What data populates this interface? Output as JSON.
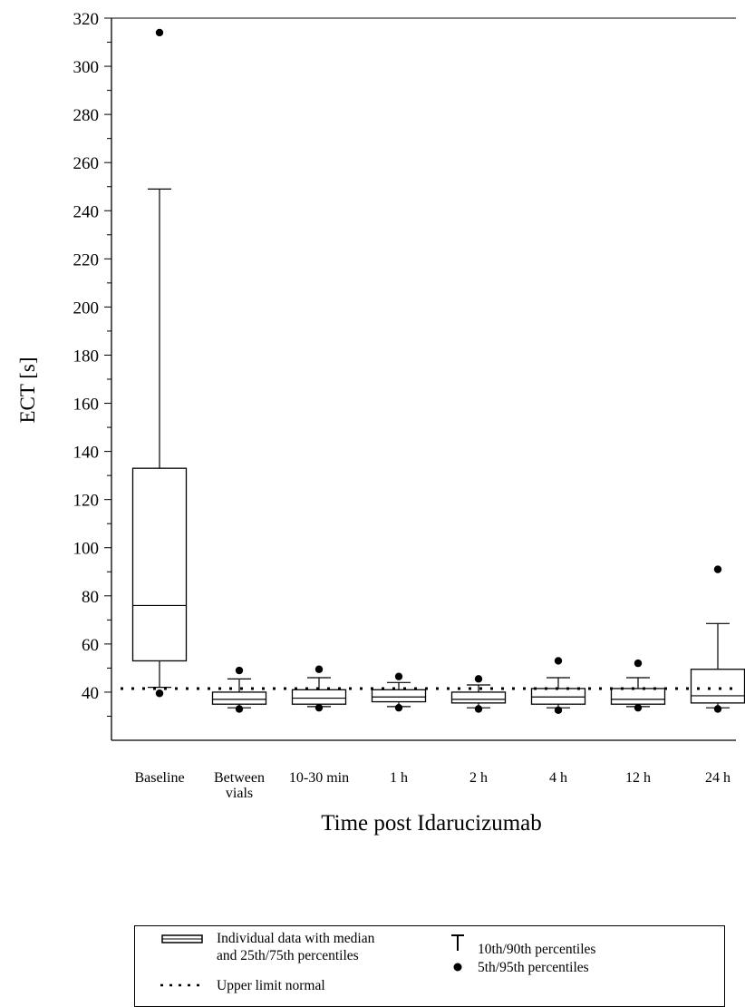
{
  "chart_data": {
    "type": "box",
    "ylabel": "ECT [s]",
    "xlabel": "Time post Idarucizumab",
    "ylim": [
      20,
      320
    ],
    "yticks": [
      40,
      60,
      80,
      100,
      120,
      140,
      160,
      180,
      200,
      220,
      240,
      260,
      280,
      300,
      320
    ],
    "categories": [
      "Baseline",
      "Between\nvials",
      "10-30 min",
      "1 h",
      "2 h",
      "4 h",
      "12 h",
      "24 h"
    ],
    "upper_limit_normal": 41.5,
    "series": [
      {
        "boxes": [
          {
            "p5": 39.5,
            "p10": 42,
            "q1": 53,
            "median": 76,
            "q3": 133,
            "p90": 249,
            "p95": 314
          },
          {
            "p5": 33,
            "p10": 33.5,
            "q1": 35,
            "median": 37,
            "q3": 40,
            "p90": 45.5,
            "p95": 49
          },
          {
            "p5": 33.5,
            "p10": 34,
            "q1": 35,
            "median": 37.5,
            "q3": 41,
            "p90": 46,
            "p95": 49.5
          },
          {
            "p5": 33.5,
            "p10": 34,
            "q1": 36,
            "median": 38,
            "q3": 41,
            "p90": 44,
            "p95": 46.5
          },
          {
            "p5": 33,
            "p10": 33.5,
            "q1": 35.5,
            "median": 37,
            "q3": 40,
            "p90": 43,
            "p95": 45.5
          },
          {
            "p5": 32.5,
            "p10": 33.5,
            "q1": 35,
            "median": 38,
            "q3": 41.5,
            "p90": 46,
            "p95": 53
          },
          {
            "p5": 33.5,
            "p10": 34,
            "q1": 35,
            "median": 37,
            "q3": 41.5,
            "p90": 46,
            "p95": 52
          },
          {
            "p5": 33,
            "p10": 33.5,
            "q1": 35.5,
            "median": 38.5,
            "q3": 49.5,
            "p90": 68.5,
            "p95": 91
          }
        ]
      }
    ],
    "legend": {
      "box": "Individual data with median\nand 25th/75th percentiles",
      "whisker": "10th/90th percentiles",
      "dots": "5th/95th percentiles",
      "line": "Upper limit normal"
    }
  }
}
